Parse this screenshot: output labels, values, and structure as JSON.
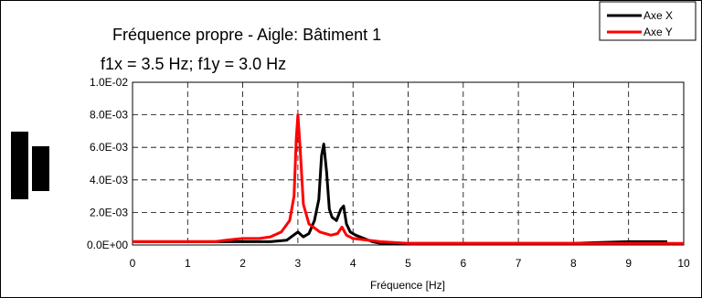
{
  "chart_data": {
    "type": "line",
    "title": "Fréquence propre - Aigle: Bâtiment 1",
    "subtitle": "f1x = 3.5 Hz; f1y = 3.0 Hz",
    "xlabel": "Fréquence [Hz]",
    "ylabel": "",
    "xlim": [
      0,
      10
    ],
    "ylim": [
      0,
      0.01
    ],
    "x_ticks": [
      "0",
      "1",
      "2",
      "3",
      "4",
      "5",
      "6",
      "7",
      "8",
      "9",
      "10"
    ],
    "y_ticks": [
      "0.0E+00",
      "2.0E-03",
      "4.0E-03",
      "6.0E-03",
      "8.0E-03",
      "1.0E-02"
    ],
    "grid": true,
    "legend_position": "top-right",
    "series": [
      {
        "name": "Axe X",
        "color": "#000000",
        "points": [
          [
            0,
            0.0002
          ],
          [
            1.0,
            0.0002
          ],
          [
            1.5,
            0.0002
          ],
          [
            2.0,
            0.0002
          ],
          [
            2.5,
            0.0002
          ],
          [
            2.8,
            0.0003
          ],
          [
            3.0,
            0.0008
          ],
          [
            3.1,
            0.0005
          ],
          [
            3.2,
            0.0007
          ],
          [
            3.3,
            0.0015
          ],
          [
            3.38,
            0.0028
          ],
          [
            3.43,
            0.0055
          ],
          [
            3.47,
            0.0062
          ],
          [
            3.52,
            0.0045
          ],
          [
            3.57,
            0.0022
          ],
          [
            3.62,
            0.0017
          ],
          [
            3.7,
            0.0015
          ],
          [
            3.78,
            0.0022
          ],
          [
            3.83,
            0.0024
          ],
          [
            3.88,
            0.0013
          ],
          [
            3.95,
            0.0008
          ],
          [
            4.05,
            0.0006
          ],
          [
            4.2,
            0.0004
          ],
          [
            4.35,
            0.0002
          ],
          [
            4.5,
            0.0001
          ],
          [
            5.0,
            0.0001
          ],
          [
            6.0,
            0.0001
          ],
          [
            7.0,
            0.0001
          ],
          [
            8.0,
            0.0001
          ],
          [
            8.5,
            0.00015
          ],
          [
            9.0,
            0.0002
          ],
          [
            9.7,
            0.0002
          ]
        ]
      },
      {
        "name": "Axe Y",
        "color": "#ff0000",
        "points": [
          [
            0,
            0.0002
          ],
          [
            1.0,
            0.0002
          ],
          [
            1.5,
            0.0002
          ],
          [
            1.7,
            0.0003
          ],
          [
            2.0,
            0.0004
          ],
          [
            2.3,
            0.0004
          ],
          [
            2.5,
            0.0005
          ],
          [
            2.7,
            0.0008
          ],
          [
            2.85,
            0.0015
          ],
          [
            2.93,
            0.003
          ],
          [
            2.97,
            0.0065
          ],
          [
            3.0,
            0.008
          ],
          [
            3.04,
            0.006
          ],
          [
            3.1,
            0.0025
          ],
          [
            3.2,
            0.0013
          ],
          [
            3.4,
            0.0008
          ],
          [
            3.6,
            0.0006
          ],
          [
            3.72,
            0.0007
          ],
          [
            3.8,
            0.0011
          ],
          [
            3.88,
            0.0006
          ],
          [
            4.0,
            0.0004
          ],
          [
            4.5,
            0.0002
          ],
          [
            5.0,
            0.0001
          ],
          [
            6.0,
            0.0001
          ],
          [
            7.0,
            0.0001
          ],
          [
            8.0,
            0.0001
          ],
          [
            9.0,
            0.0001
          ],
          [
            10.0,
            0.0001
          ]
        ]
      }
    ]
  }
}
